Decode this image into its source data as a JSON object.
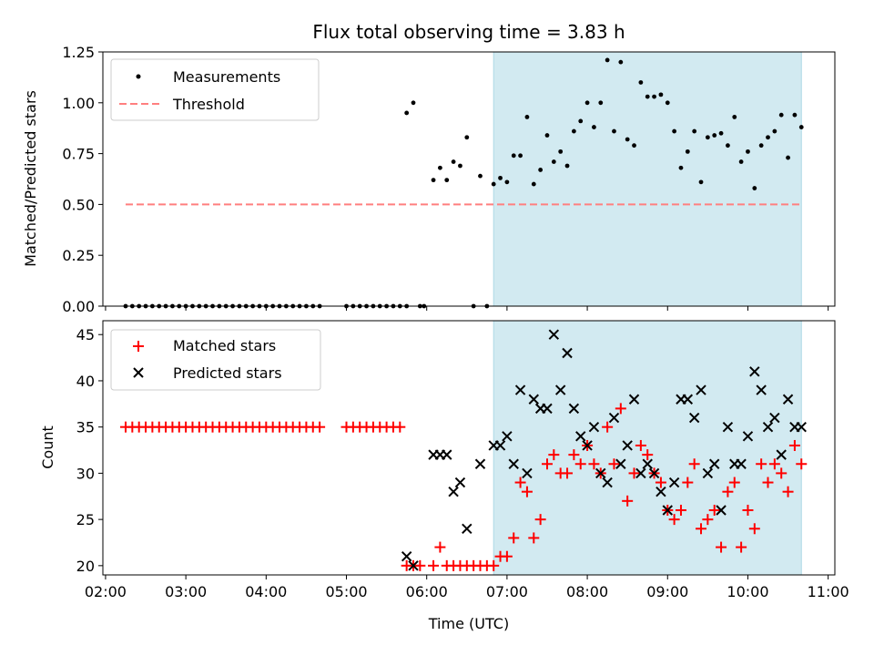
{
  "figure": {
    "title": "Flux total observing time = 3.83 h"
  },
  "colors": {
    "measurement": "#000000",
    "threshold": "#ff7f7f",
    "shade": "#add8e6",
    "matched": "#ff0000",
    "predicted": "#000000"
  },
  "chart_data": [
    {
      "type": "scatter",
      "ylabel": "Matched/Predicted stars",
      "xlim": [
        "01:58",
        "11:05"
      ],
      "ylim": [
        0,
        1.25
      ],
      "yticks": [
        "0.00",
        "0.25",
        "0.50",
        "0.75",
        "1.00",
        "1.25"
      ],
      "shaded_span": [
        "06:50",
        "10:40"
      ],
      "legend": {
        "position": "top-left",
        "entries": [
          "Measurements",
          "Threshold"
        ]
      },
      "threshold": {
        "name": "Threshold",
        "value": 0.5,
        "x_range": [
          "02:15",
          "10:40"
        ]
      },
      "series": [
        {
          "name": "Measurements",
          "points": [
            [
              "02:15",
              0
            ],
            [
              "02:20",
              0
            ],
            [
              "02:25",
              0
            ],
            [
              "02:30",
              0
            ],
            [
              "02:35",
              0
            ],
            [
              "02:40",
              0
            ],
            [
              "02:45",
              0
            ],
            [
              "02:50",
              0
            ],
            [
              "02:55",
              0
            ],
            [
              "03:00",
              0
            ],
            [
              "03:05",
              0
            ],
            [
              "03:10",
              0
            ],
            [
              "03:15",
              0
            ],
            [
              "03:20",
              0
            ],
            [
              "03:25",
              0
            ],
            [
              "03:30",
              0
            ],
            [
              "03:35",
              0
            ],
            [
              "03:40",
              0
            ],
            [
              "03:45",
              0
            ],
            [
              "03:50",
              0
            ],
            [
              "03:55",
              0
            ],
            [
              "04:00",
              0
            ],
            [
              "04:05",
              0
            ],
            [
              "04:10",
              0
            ],
            [
              "04:15",
              0
            ],
            [
              "04:20",
              0
            ],
            [
              "04:25",
              0
            ],
            [
              "04:30",
              0
            ],
            [
              "04:35",
              0
            ],
            [
              "04:40",
              0
            ],
            [
              "05:00",
              0
            ],
            [
              "05:05",
              0
            ],
            [
              "05:10",
              0
            ],
            [
              "05:15",
              0
            ],
            [
              "05:20",
              0
            ],
            [
              "05:25",
              0
            ],
            [
              "05:30",
              0
            ],
            [
              "05:35",
              0
            ],
            [
              "05:40",
              0
            ],
            [
              "05:45",
              0
            ],
            [
              "05:45",
              0.95
            ],
            [
              "05:50",
              1.0
            ],
            [
              "05:55",
              0
            ],
            [
              "05:58",
              0
            ],
            [
              "06:05",
              0.62
            ],
            [
              "06:10",
              0.68
            ],
            [
              "06:15",
              0.62
            ],
            [
              "06:20",
              0.71
            ],
            [
              "06:25",
              0.69
            ],
            [
              "06:30",
              0.83
            ],
            [
              "06:35",
              0
            ],
            [
              "06:40",
              0.64
            ],
            [
              "06:45",
              0
            ],
            [
              "06:50",
              0.6
            ],
            [
              "06:55",
              0.63
            ],
            [
              "07:00",
              0.61
            ],
            [
              "07:05",
              0.74
            ],
            [
              "07:10",
              0.74
            ],
            [
              "07:15",
              0.93
            ],
            [
              "07:20",
              0.6
            ],
            [
              "07:25",
              0.67
            ],
            [
              "07:30",
              0.84
            ],
            [
              "07:35",
              0.71
            ],
            [
              "07:40",
              0.76
            ],
            [
              "07:45",
              0.69
            ],
            [
              "07:50",
              0.86
            ],
            [
              "07:55",
              0.91
            ],
            [
              "08:00",
              1.0
            ],
            [
              "08:05",
              0.88
            ],
            [
              "08:10",
              1.0
            ],
            [
              "08:15",
              1.21
            ],
            [
              "08:20",
              0.86
            ],
            [
              "08:25",
              1.2
            ],
            [
              "08:30",
              0.82
            ],
            [
              "08:35",
              0.79
            ],
            [
              "08:40",
              1.1
            ],
            [
              "08:45",
              1.03
            ],
            [
              "08:50",
              1.03
            ],
            [
              "08:55",
              1.04
            ],
            [
              "09:00",
              1.0
            ],
            [
              "09:05",
              0.86
            ],
            [
              "09:10",
              0.68
            ],
            [
              "09:15",
              0.76
            ],
            [
              "09:20",
              0.86
            ],
            [
              "09:25",
              0.61
            ],
            [
              "09:30",
              0.83
            ],
            [
              "09:35",
              0.84
            ],
            [
              "09:40",
              0.85
            ],
            [
              "09:45",
              0.79
            ],
            [
              "09:50",
              0.93
            ],
            [
              "09:55",
              0.71
            ],
            [
              "10:00",
              0.76
            ],
            [
              "10:05",
              0.58
            ],
            [
              "10:10",
              0.79
            ],
            [
              "10:15",
              0.83
            ],
            [
              "10:20",
              0.86
            ],
            [
              "10:25",
              0.94
            ],
            [
              "10:30",
              0.73
            ],
            [
              "10:35",
              0.94
            ],
            [
              "10:40",
              0.88
            ]
          ]
        }
      ]
    },
    {
      "type": "scatter",
      "xlabel": "Time (UTC)",
      "ylabel": "Count",
      "xlim": [
        "01:58",
        "11:05"
      ],
      "ylim": [
        19,
        46.5
      ],
      "yticks": [
        "20",
        "25",
        "30",
        "35",
        "40",
        "45"
      ],
      "xticks": [
        "02:00",
        "03:00",
        "04:00",
        "05:00",
        "06:00",
        "07:00",
        "08:00",
        "09:00",
        "10:00",
        "11:00"
      ],
      "shaded_span": [
        "06:50",
        "10:40"
      ],
      "legend": {
        "position": "top-left",
        "entries": [
          "Matched stars",
          "Predicted stars"
        ]
      },
      "series": [
        {
          "name": "Matched stars",
          "marker": "plus",
          "points": [
            [
              "02:15",
              35
            ],
            [
              "02:20",
              35
            ],
            [
              "02:25",
              35
            ],
            [
              "02:30",
              35
            ],
            [
              "02:35",
              35
            ],
            [
              "02:40",
              35
            ],
            [
              "02:45",
              35
            ],
            [
              "02:50",
              35
            ],
            [
              "02:55",
              35
            ],
            [
              "03:00",
              35
            ],
            [
              "03:05",
              35
            ],
            [
              "03:10",
              35
            ],
            [
              "03:15",
              35
            ],
            [
              "03:20",
              35
            ],
            [
              "03:25",
              35
            ],
            [
              "03:30",
              35
            ],
            [
              "03:35",
              35
            ],
            [
              "03:40",
              35
            ],
            [
              "03:45",
              35
            ],
            [
              "03:50",
              35
            ],
            [
              "03:55",
              35
            ],
            [
              "04:00",
              35
            ],
            [
              "04:05",
              35
            ],
            [
              "04:10",
              35
            ],
            [
              "04:15",
              35
            ],
            [
              "04:20",
              35
            ],
            [
              "04:25",
              35
            ],
            [
              "04:30",
              35
            ],
            [
              "04:35",
              35
            ],
            [
              "04:40",
              35
            ],
            [
              "05:00",
              35
            ],
            [
              "05:05",
              35
            ],
            [
              "05:10",
              35
            ],
            [
              "05:15",
              35
            ],
            [
              "05:20",
              35
            ],
            [
              "05:25",
              35
            ],
            [
              "05:30",
              35
            ],
            [
              "05:35",
              35
            ],
            [
              "05:40",
              35
            ],
            [
              "05:45",
              20
            ],
            [
              "05:50",
              20
            ],
            [
              "05:55",
              20
            ],
            [
              "06:05",
              20
            ],
            [
              "06:10",
              22
            ],
            [
              "06:15",
              20
            ],
            [
              "06:20",
              20
            ],
            [
              "06:25",
              20
            ],
            [
              "06:30",
              20
            ],
            [
              "06:35",
              20
            ],
            [
              "06:40",
              20
            ],
            [
              "06:45",
              20
            ],
            [
              "06:50",
              20
            ],
            [
              "06:55",
              21
            ],
            [
              "07:00",
              21
            ],
            [
              "07:05",
              23
            ],
            [
              "07:10",
              29
            ],
            [
              "07:15",
              28
            ],
            [
              "07:20",
              23
            ],
            [
              "07:25",
              25
            ],
            [
              "07:30",
              31
            ],
            [
              "07:35",
              32
            ],
            [
              "07:40",
              30
            ],
            [
              "07:45",
              30
            ],
            [
              "07:50",
              32
            ],
            [
              "07:55",
              31
            ],
            [
              "08:00",
              33
            ],
            [
              "08:05",
              31
            ],
            [
              "08:10",
              30
            ],
            [
              "08:15",
              35
            ],
            [
              "08:20",
              31
            ],
            [
              "08:25",
              37
            ],
            [
              "08:30",
              27
            ],
            [
              "08:35",
              30
            ],
            [
              "08:40",
              33
            ],
            [
              "08:45",
              32
            ],
            [
              "08:50",
              30
            ],
            [
              "08:55",
              29
            ],
            [
              "09:00",
              26
            ],
            [
              "09:05",
              25
            ],
            [
              "09:10",
              26
            ],
            [
              "09:15",
              29
            ],
            [
              "09:20",
              31
            ],
            [
              "09:25",
              24
            ],
            [
              "09:30",
              25
            ],
            [
              "09:35",
              26
            ],
            [
              "09:40",
              22
            ],
            [
              "09:45",
              28
            ],
            [
              "09:50",
              29
            ],
            [
              "09:55",
              22
            ],
            [
              "10:00",
              26
            ],
            [
              "10:05",
              24
            ],
            [
              "10:10",
              31
            ],
            [
              "10:15",
              29
            ],
            [
              "10:20",
              31
            ],
            [
              "10:25",
              30
            ],
            [
              "10:30",
              28
            ],
            [
              "10:35",
              33
            ],
            [
              "10:40",
              31
            ]
          ]
        },
        {
          "name": "Predicted stars",
          "marker": "x",
          "points": [
            [
              "05:45",
              21
            ],
            [
              "05:50",
              20
            ],
            [
              "06:05",
              32
            ],
            [
              "06:10",
              32
            ],
            [
              "06:15",
              32
            ],
            [
              "06:20",
              28
            ],
            [
              "06:25",
              29
            ],
            [
              "06:30",
              24
            ],
            [
              "06:40",
              31
            ],
            [
              "06:50",
              33
            ],
            [
              "06:55",
              33
            ],
            [
              "07:00",
              34
            ],
            [
              "07:05",
              31
            ],
            [
              "07:10",
              39
            ],
            [
              "07:15",
              30
            ],
            [
              "07:20",
              38
            ],
            [
              "07:25",
              37
            ],
            [
              "07:30",
              37
            ],
            [
              "07:35",
              45
            ],
            [
              "07:40",
              39
            ],
            [
              "07:45",
              43
            ],
            [
              "07:50",
              37
            ],
            [
              "07:55",
              34
            ],
            [
              "08:00",
              33
            ],
            [
              "08:05",
              35
            ],
            [
              "08:10",
              30
            ],
            [
              "08:15",
              29
            ],
            [
              "08:20",
              36
            ],
            [
              "08:25",
              31
            ],
            [
              "08:30",
              33
            ],
            [
              "08:35",
              38
            ],
            [
              "08:40",
              30
            ],
            [
              "08:45",
              31
            ],
            [
              "08:50",
              30
            ],
            [
              "08:55",
              28
            ],
            [
              "09:00",
              26
            ],
            [
              "09:05",
              29
            ],
            [
              "09:10",
              38
            ],
            [
              "09:15",
              38
            ],
            [
              "09:20",
              36
            ],
            [
              "09:25",
              39
            ],
            [
              "09:30",
              30
            ],
            [
              "09:35",
              31
            ],
            [
              "09:40",
              26
            ],
            [
              "09:45",
              35
            ],
            [
              "09:50",
              31
            ],
            [
              "09:55",
              31
            ],
            [
              "10:00",
              34
            ],
            [
              "10:05",
              41
            ],
            [
              "10:10",
              39
            ],
            [
              "10:15",
              35
            ],
            [
              "10:20",
              36
            ],
            [
              "10:25",
              32
            ],
            [
              "10:30",
              38
            ],
            [
              "10:35",
              35
            ],
            [
              "10:40",
              35
            ]
          ]
        }
      ]
    }
  ]
}
